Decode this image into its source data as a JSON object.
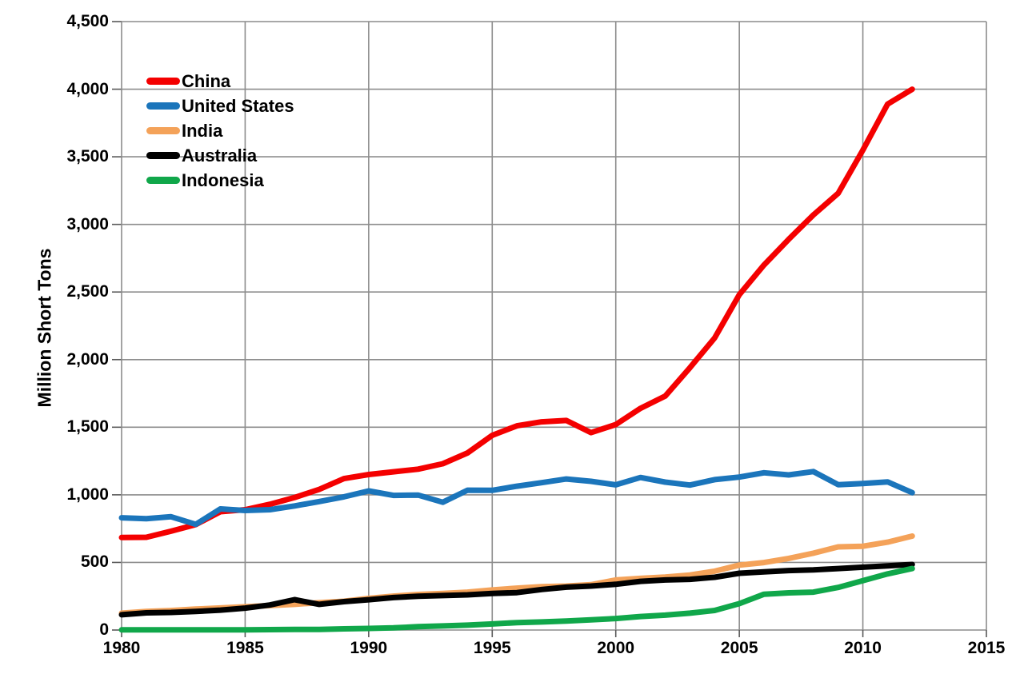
{
  "chart_data": {
    "type": "line",
    "title": "",
    "ylabel": "Million Short Tons",
    "xlabel": "",
    "grid": true,
    "legend_position": "upper-left",
    "xlim": [
      1980,
      2015
    ],
    "ylim": [
      0,
      4500
    ],
    "xtick_step": 5,
    "ytick_step": 500,
    "xtick_labels": [
      "1980",
      "1985",
      "1990",
      "1995",
      "2000",
      "2005",
      "2010",
      "2015"
    ],
    "ytick_labels": [
      "0",
      "500",
      "1,000",
      "1,500",
      "2,000",
      "2,500",
      "3,000",
      "3,500",
      "4,000",
      "4,500"
    ],
    "x": [
      1980,
      1981,
      1982,
      1983,
      1984,
      1985,
      1986,
      1987,
      1988,
      1989,
      1990,
      1991,
      1992,
      1993,
      1994,
      1995,
      1996,
      1997,
      1998,
      1999,
      2000,
      2001,
      2002,
      2003,
      2004,
      2005,
      2006,
      2007,
      2008,
      2009,
      2010,
      2011,
      2012
    ],
    "series": [
      {
        "name": "China",
        "color": "#F40000",
        "values": [
          684,
          686,
          731,
          780,
          875,
          890,
          930,
          980,
          1040,
          1120,
          1150,
          1170,
          1190,
          1230,
          1310,
          1440,
          1510,
          1540,
          1550,
          1460,
          1520,
          1640,
          1730,
          1940,
          2160,
          2480,
          2700,
          2890,
          3070,
          3230,
          3550,
          3890,
          4000
        ]
      },
      {
        "name": "United States",
        "color": "#1B75BB",
        "values": [
          830,
          824,
          838,
          782,
          896,
          884,
          890,
          918,
          950,
          985,
          1029,
          996,
          998,
          945,
          1034,
          1033,
          1064,
          1090,
          1117,
          1100,
          1074,
          1128,
          1094,
          1072,
          1112,
          1131,
          1163,
          1147,
          1172,
          1075,
          1084,
          1096,
          1016
        ]
      },
      {
        "name": "India",
        "color": "#F4A259",
        "values": [
          125,
          137,
          144,
          155,
          163,
          172,
          181,
          190,
          203,
          213,
          235,
          251,
          263,
          270,
          280,
          297,
          310,
          321,
          325,
          335,
          370,
          382,
          392,
          407,
          435,
          480,
          499,
          530,
          568,
          615,
          620,
          650,
          695
        ]
      },
      {
        "name": "Australia",
        "color": "#000000",
        "values": [
          113,
          127,
          130,
          137,
          147,
          162,
          185,
          225,
          190,
          210,
          224,
          240,
          250,
          255,
          260,
          270,
          277,
          300,
          317,
          325,
          338,
          360,
          370,
          375,
          390,
          420,
          430,
          440,
          445,
          455,
          465,
          475,
          485
        ]
      },
      {
        "name": "Indonesia",
        "color": "#10A74A",
        "values": [
          1,
          1,
          2,
          2,
          2,
          2,
          3,
          4,
          5,
          9,
          12,
          16,
          25,
          30,
          36,
          45,
          55,
          60,
          67,
          75,
          85,
          100,
          110,
          125,
          145,
          195,
          265,
          275,
          280,
          315,
          365,
          415,
          455
        ]
      }
    ]
  },
  "axis_style": {
    "grid_color": "#8C8C8C",
    "tick_color": "#595959"
  }
}
